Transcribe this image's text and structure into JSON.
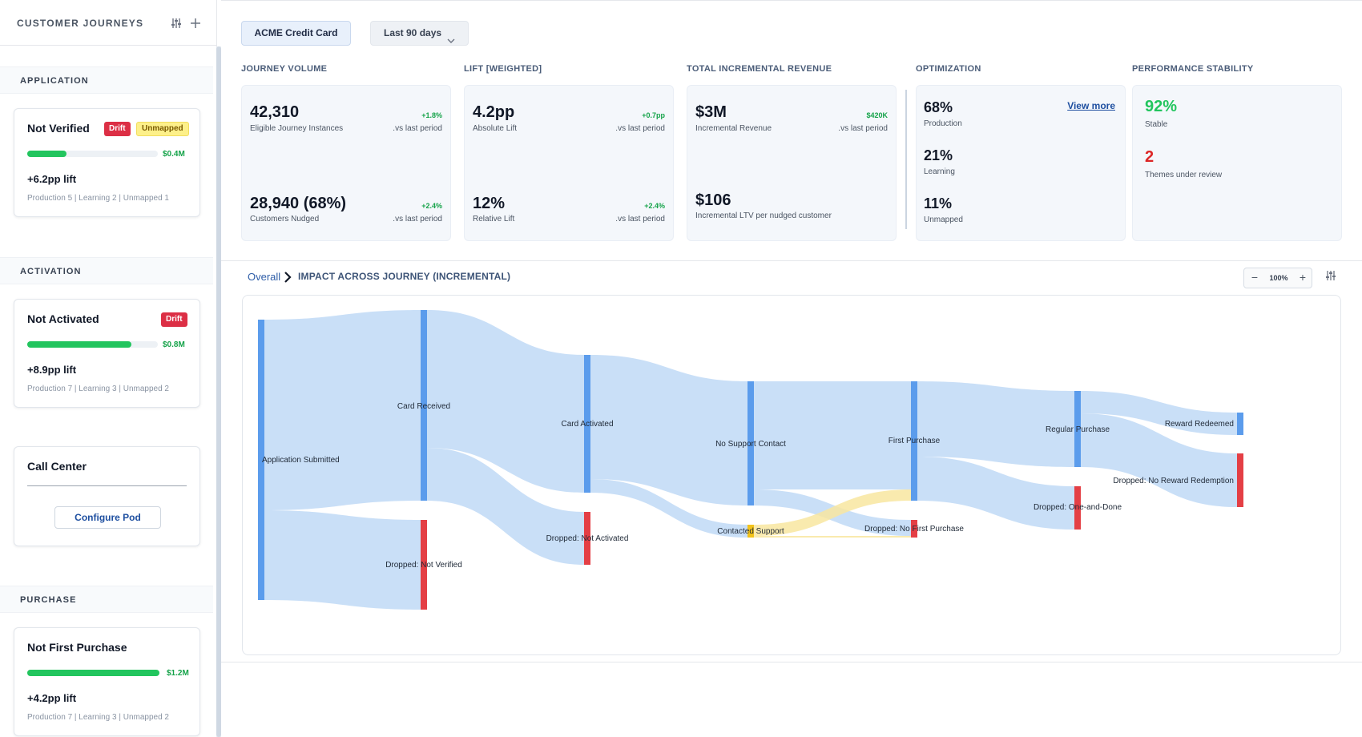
{
  "sidebar": {
    "title": "CUSTOMER JOURNEYS",
    "sections": {
      "application": "APPLICATION",
      "activation": "ACTIVATION",
      "purchase": "PURCHASE"
    },
    "cards": {
      "not_verified": {
        "title": "Not Verified",
        "badge_drift": "Drift",
        "badge_unmapped": "Unmapped",
        "bar_fraction": 0.3,
        "bar_value": "$0.4M",
        "lift": "+6.2pp lift",
        "footer": "Production 5 | Learning 2 | Unmapped 1"
      },
      "not_activated": {
        "title": "Not Activated",
        "badge_drift": "Drift",
        "bar_fraction": 0.8,
        "bar_value": "$0.8M",
        "lift": "+8.9pp lift",
        "footer": "Production 7 | Learning 3 | Unmapped 2"
      },
      "call_center": {
        "title": "Call Center",
        "button": "Configure Pod"
      },
      "not_first_purchase": {
        "title": "Not First Purchase",
        "bar_fraction": 1.0,
        "bar_value": "$1.2M",
        "lift": "+4.2pp lift",
        "footer": "Production 7 | Learning 3 | Unmapped 2"
      }
    }
  },
  "toolbar": {
    "product": "ACME Credit Card",
    "range": "Last 90 days"
  },
  "kpis": {
    "volume": {
      "label": "JOURNEY VOLUME",
      "v1": "42,310",
      "s1": "Eligible Journey Instances",
      "d1": "+1.8%",
      "vs1": ".vs last period",
      "v2": "28,940 (68%)",
      "s2": "Customers Nudged",
      "d2": "+2.4%",
      "vs2": ".vs last period"
    },
    "lift": {
      "label": "LIFT [WEIGHTED]",
      "v1": "4.2pp",
      "s1": "Absolute Lift",
      "d1": "+0.7pp",
      "vs1": ".vs last period",
      "v2": "12%",
      "s2": "Relative Lift",
      "d2": "+2.4%",
      "vs2": ".vs last period"
    },
    "revenue": {
      "label": "TOTAL INCREMENTAL REVENUE",
      "v1": "$3M",
      "s1": "Incremental Revenue",
      "d1": "$420K",
      "vs1": ".vs last period",
      "v2": "$106",
      "s2": "Incremental LTV per nudged customer"
    },
    "optimization": {
      "label": "OPTIMIZATION",
      "v1": "68%",
      "s1": "Production",
      "v2": "21%",
      "s2": "Learning",
      "v3": "11%",
      "s3": "Unmapped",
      "link": "View more"
    },
    "stability": {
      "label": "PERFORMANCE STABILITY",
      "v1": "92%",
      "s1": "Stable",
      "v2": "2",
      "s2": "Themes under review"
    }
  },
  "impact": {
    "crumb": "Overall",
    "title": "IMPACT ACROSS JOURNEY (INCREMENTAL)",
    "zoom": "100%"
  },
  "colors": {
    "node_blue": "#5b9cec",
    "node_red": "#e43f45",
    "node_yellow": "#f2c21a",
    "link_blue": "#c6ddf7",
    "link_yellow": "#f8e6a0",
    "positive": "#16a34a",
    "stable": "#22c55e",
    "warning": "#dc2626"
  },
  "sankey": {
    "nodes": [
      {
        "id": "app",
        "label": "Application Submitted",
        "color": "node_blue"
      },
      {
        "id": "card",
        "label": "Card Received",
        "color": "node_blue"
      },
      {
        "id": "dnv",
        "label": "Dropped: Not Verified",
        "color": "node_red"
      },
      {
        "id": "act",
        "label": "Card Activated",
        "color": "node_blue"
      },
      {
        "id": "dna",
        "label": "Dropped: Not Activated",
        "color": "node_red"
      },
      {
        "id": "nsc",
        "label": "No Support Contact",
        "color": "node_blue"
      },
      {
        "id": "cs",
        "label": "Contacted Support",
        "color": "node_yellow"
      },
      {
        "id": "fp",
        "label": "First Purchase",
        "color": "node_blue"
      },
      {
        "id": "dnfp",
        "label": "Dropped: No First Purchase",
        "color": "node_red"
      },
      {
        "id": "rp",
        "label": "Regular Purchase",
        "color": "node_blue"
      },
      {
        "id": "dod",
        "label": "Dropped: One-and-Done",
        "color": "node_red"
      },
      {
        "id": "rr",
        "label": "Reward Redeemed",
        "color": "node_blue"
      },
      {
        "id": "dnrr",
        "label": "Dropped: No Reward Redemption",
        "color": "node_red"
      }
    ]
  }
}
